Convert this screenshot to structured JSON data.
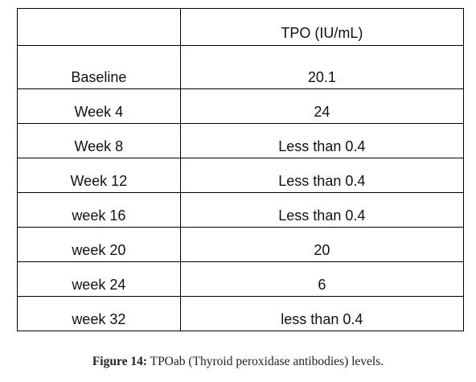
{
  "table": {
    "header": {
      "label": "",
      "value": "TPO (IU/mL)"
    },
    "rows": [
      {
        "label": "Baseline",
        "value": "20.1"
      },
      {
        "label": "Week 4",
        "value": "24"
      },
      {
        "label": "Week 8",
        "value": "Less than 0.4"
      },
      {
        "label": "Week 12",
        "value": "Less than 0.4"
      },
      {
        "label": "week 16",
        "value": "Less than 0.4"
      },
      {
        "label": "week 20",
        "value": "20"
      },
      {
        "label": "week 24",
        "value": "6"
      },
      {
        "label": "week 32",
        "value": "less than 0.4"
      }
    ]
  },
  "caption": {
    "label": "Figure 14:",
    "text": " TPOab (Thyroid peroxidase antibodies) levels."
  }
}
